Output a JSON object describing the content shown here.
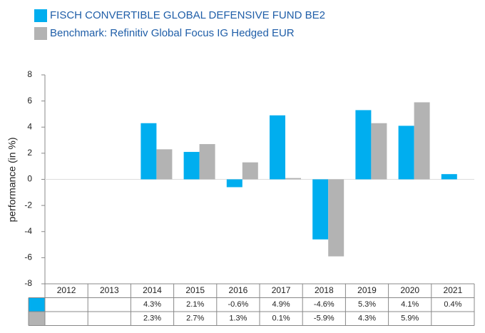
{
  "chart_data": {
    "type": "bar",
    "y_label": "performance (in %)",
    "categories": [
      "2012",
      "2013",
      "2014",
      "2015",
      "2016",
      "2017",
      "2018",
      "2019",
      "2020",
      "2021"
    ],
    "series": [
      {
        "name": "FISCH CONVERTIBLE GLOBAL DEFENSIVE FUND BE2",
        "color": "#00aeef",
        "values": [
          null,
          null,
          4.3,
          2.1,
          -0.6,
          4.9,
          -4.6,
          5.3,
          4.1,
          0.4
        ],
        "value_labels": [
          null,
          null,
          "4.3%",
          "2.1%",
          "-0.6%",
          "4.9%",
          "-4.6%",
          "5.3%",
          "4.1%",
          "0.4%"
        ]
      },
      {
        "name": "Benchmark: Refinitiv Global Focus IG Hedged EUR",
        "color": "#b3b3b3",
        "values": [
          null,
          null,
          2.3,
          2.7,
          1.3,
          0.1,
          -5.9,
          4.3,
          5.9,
          null
        ],
        "value_labels": [
          null,
          null,
          "2.3%",
          "2.7%",
          "1.3%",
          "0.1%",
          "-5.9%",
          "4.3%",
          "5.9%",
          null
        ]
      }
    ],
    "ylim": [
      -8,
      8
    ],
    "yticks": [
      -8,
      -6,
      -4,
      -2,
      0,
      2,
      4,
      6,
      8
    ],
    "grid": false
  }
}
